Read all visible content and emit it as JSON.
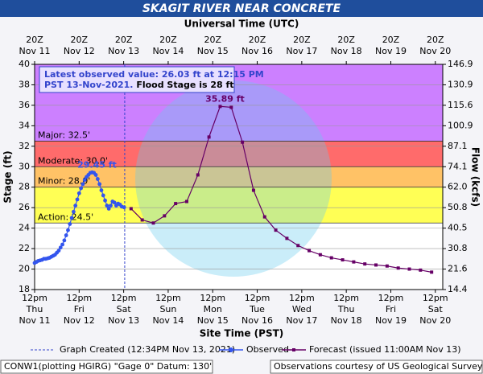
{
  "chart_data": {
    "type": "line",
    "title": "SKAGIT RIVER NEAR CONCRETE",
    "top_axis_label": "Universal Time (UTC)",
    "x_label": "Site Time (PST)",
    "y_label": "Stage (ft)",
    "y2_label": "Flow (kcfs)",
    "xlim": [
      "2021-11-11 12:00",
      "2021-11-20 16:00"
    ],
    "xticks": [
      {
        "value": "2021-11-11 12:00",
        "label": [
          "12pm",
          "Thu",
          "Nov 11"
        ]
      },
      {
        "value": "2021-11-12 12:00",
        "label": [
          "12pm",
          "Fri",
          "Nov 12"
        ]
      },
      {
        "value": "2021-11-13 12:00",
        "label": [
          "12pm",
          "Sat",
          "Nov 13"
        ]
      },
      {
        "value": "2021-11-14 12:00",
        "label": [
          "12pm",
          "Sun",
          "Nov 14"
        ]
      },
      {
        "value": "2021-11-15 12:00",
        "label": [
          "12pm",
          "Mon",
          "Nov 15"
        ]
      },
      {
        "value": "2021-11-16 12:00",
        "label": [
          "12pm",
          "Tue",
          "Nov 16"
        ]
      },
      {
        "value": "2021-11-17 12:00",
        "label": [
          "12pm",
          "Wed",
          "Nov 17"
        ]
      },
      {
        "value": "2021-11-18 12:00",
        "label": [
          "12pm",
          "Thu",
          "Nov 18"
        ]
      },
      {
        "value": "2021-11-19 12:00",
        "label": [
          "12pm",
          "Fri",
          "Nov 19"
        ]
      },
      {
        "value": "2021-11-20 12:00",
        "label": [
          "12pm",
          "Sat",
          "Nov 20"
        ]
      }
    ],
    "x2ticks": [
      {
        "value": "2021-11-11 12:00",
        "label": [
          "20Z",
          "Nov 11"
        ]
      },
      {
        "value": "2021-11-12 12:00",
        "label": [
          "20Z",
          "Nov 12"
        ]
      },
      {
        "value": "2021-11-13 12:00",
        "label": [
          "20Z",
          "Nov 13"
        ]
      },
      {
        "value": "2021-11-14 12:00",
        "label": [
          "20Z",
          "Nov 14"
        ]
      },
      {
        "value": "2021-11-15 12:00",
        "label": [
          "20Z",
          "Nov 15"
        ]
      },
      {
        "value": "2021-11-16 12:00",
        "label": [
          "20Z",
          "Nov 16"
        ]
      },
      {
        "value": "2021-11-17 12:00",
        "label": [
          "20Z",
          "Nov 17"
        ]
      },
      {
        "value": "2021-11-18 12:00",
        "label": [
          "20Z",
          "Nov 18"
        ]
      },
      {
        "value": "2021-11-19 12:00",
        "label": [
          "20Z",
          "Nov 19"
        ]
      },
      {
        "value": "2021-11-20 12:00",
        "label": [
          "20Z",
          "Nov 20"
        ]
      }
    ],
    "ylim": [
      18,
      40
    ],
    "yticks": [
      18,
      20,
      22,
      24,
      26,
      28,
      30,
      32,
      34,
      36,
      38,
      40
    ],
    "y2lim": [
      14.4,
      146.9
    ],
    "y2ticks": [
      14.4,
      21.6,
      30.8,
      40.5,
      50.8,
      {
        "value": 62,
        "label": "62.0"
      },
      74.1,
      87.1,
      100.9,
      115.6,
      130.9,
      146.9
    ],
    "grid": true,
    "flood_stages": [
      {
        "label": "Action: 24.5'",
        "value": 24.5,
        "color": "#ffff55"
      },
      {
        "label": "Minor: 28.0'",
        "value": 28,
        "color": "#ffc266"
      },
      {
        "label": "Moderate: 30.0'",
        "value": 30,
        "color": "#ff6b6b"
      },
      {
        "label": "Major: 32.5'",
        "value": 32.5,
        "color": "#cc80ff"
      }
    ],
    "info_box": {
      "line1": "Latest observed value: 26.03 ft at 12:15 PM",
      "line2a": "PST 13-Nov-2021.",
      "line2b": "Flood Stage is 28 ft"
    },
    "created": {
      "label": "Graph Created (12:34PM Nov 13, 2021)",
      "x": "2021-11-13 12:34",
      "color": "#3344cc"
    },
    "series": [
      {
        "name": "Observed",
        "color": "#3355ee",
        "marker": "circle",
        "peak_label": "29.45 ft",
        "x": [
          "2021-11-11 12:00",
          "2021-11-11 13:00",
          "2021-11-11 14:00",
          "2021-11-11 15:00",
          "2021-11-11 16:00",
          "2021-11-11 17:00",
          "2021-11-11 18:00",
          "2021-11-11 19:00",
          "2021-11-11 20:00",
          "2021-11-11 21:00",
          "2021-11-11 22:00",
          "2021-11-11 23:00",
          "2021-11-12 00:00",
          "2021-11-12 01:00",
          "2021-11-12 02:00",
          "2021-11-12 03:00",
          "2021-11-12 04:00",
          "2021-11-12 05:00",
          "2021-11-12 06:00",
          "2021-11-12 07:00",
          "2021-11-12 08:00",
          "2021-11-12 09:00",
          "2021-11-12 10:00",
          "2021-11-12 11:00",
          "2021-11-12 12:00",
          "2021-11-12 13:00",
          "2021-11-12 14:00",
          "2021-11-12 15:00",
          "2021-11-12 16:00",
          "2021-11-12 17:00",
          "2021-11-12 18:00",
          "2021-11-12 19:00",
          "2021-11-12 20:00",
          "2021-11-12 21:00",
          "2021-11-12 22:00",
          "2021-11-12 23:00",
          "2021-11-13 00:00",
          "2021-11-13 01:00",
          "2021-11-13 02:00",
          "2021-11-13 03:00",
          "2021-11-13 04:00",
          "2021-11-13 05:00",
          "2021-11-13 06:00",
          "2021-11-13 07:00",
          "2021-11-13 08:00",
          "2021-11-13 09:00",
          "2021-11-13 10:00",
          "2021-11-13 11:00",
          "2021-11-13 12:15"
        ],
        "values": [
          20.6,
          20.7,
          20.8,
          20.85,
          20.9,
          21.0,
          21.0,
          21.05,
          21.1,
          21.2,
          21.3,
          21.4,
          21.6,
          21.8,
          22.1,
          22.4,
          22.8,
          23.3,
          23.8,
          24.4,
          25.0,
          25.6,
          26.2,
          26.8,
          27.4,
          27.9,
          28.3,
          28.7,
          29.0,
          29.2,
          29.4,
          29.45,
          29.4,
          29.2,
          28.8,
          28.3,
          27.7,
          27.2,
          26.7,
          26.2,
          25.9,
          26.2,
          26.6,
          26.5,
          26.2,
          26.4,
          26.3,
          26.1,
          26.03
        ]
      },
      {
        "name": "Forecast (issued 11:00AM Nov 13)",
        "color": "#660066",
        "marker": "square",
        "peak_label": "35.89 ft",
        "x": [
          "2021-11-13 16:00",
          "2021-11-13 22:00",
          "2021-11-14 04:00",
          "2021-11-14 10:00",
          "2021-11-14 16:00",
          "2021-11-14 22:00",
          "2021-11-15 04:00",
          "2021-11-15 10:00",
          "2021-11-15 16:00",
          "2021-11-15 22:00",
          "2021-11-16 04:00",
          "2021-11-16 10:00",
          "2021-11-16 16:00",
          "2021-11-16 22:00",
          "2021-11-17 04:00",
          "2021-11-17 10:00",
          "2021-11-17 16:00",
          "2021-11-17 22:00",
          "2021-11-18 04:00",
          "2021-11-18 10:00",
          "2021-11-18 16:00",
          "2021-11-18 22:00",
          "2021-11-19 04:00",
          "2021-11-19 10:00",
          "2021-11-19 16:00",
          "2021-11-19 22:00",
          "2021-11-20 04:00",
          "2021-11-20 10:00"
        ],
        "values": [
          25.9,
          24.8,
          24.5,
          25.2,
          26.4,
          26.6,
          29.2,
          32.9,
          35.89,
          35.8,
          32.4,
          27.7,
          25.1,
          23.8,
          23.0,
          22.3,
          21.8,
          21.4,
          21.1,
          20.9,
          20.7,
          20.5,
          20.4,
          20.3,
          20.1,
          20.0,
          19.9,
          19.7
        ]
      }
    ],
    "footer": {
      "left": "CONW1(plotting HGIRG) \"Gage 0\" Datum: 130'",
      "right": "Observations courtesy of US Geological Survey"
    }
  }
}
